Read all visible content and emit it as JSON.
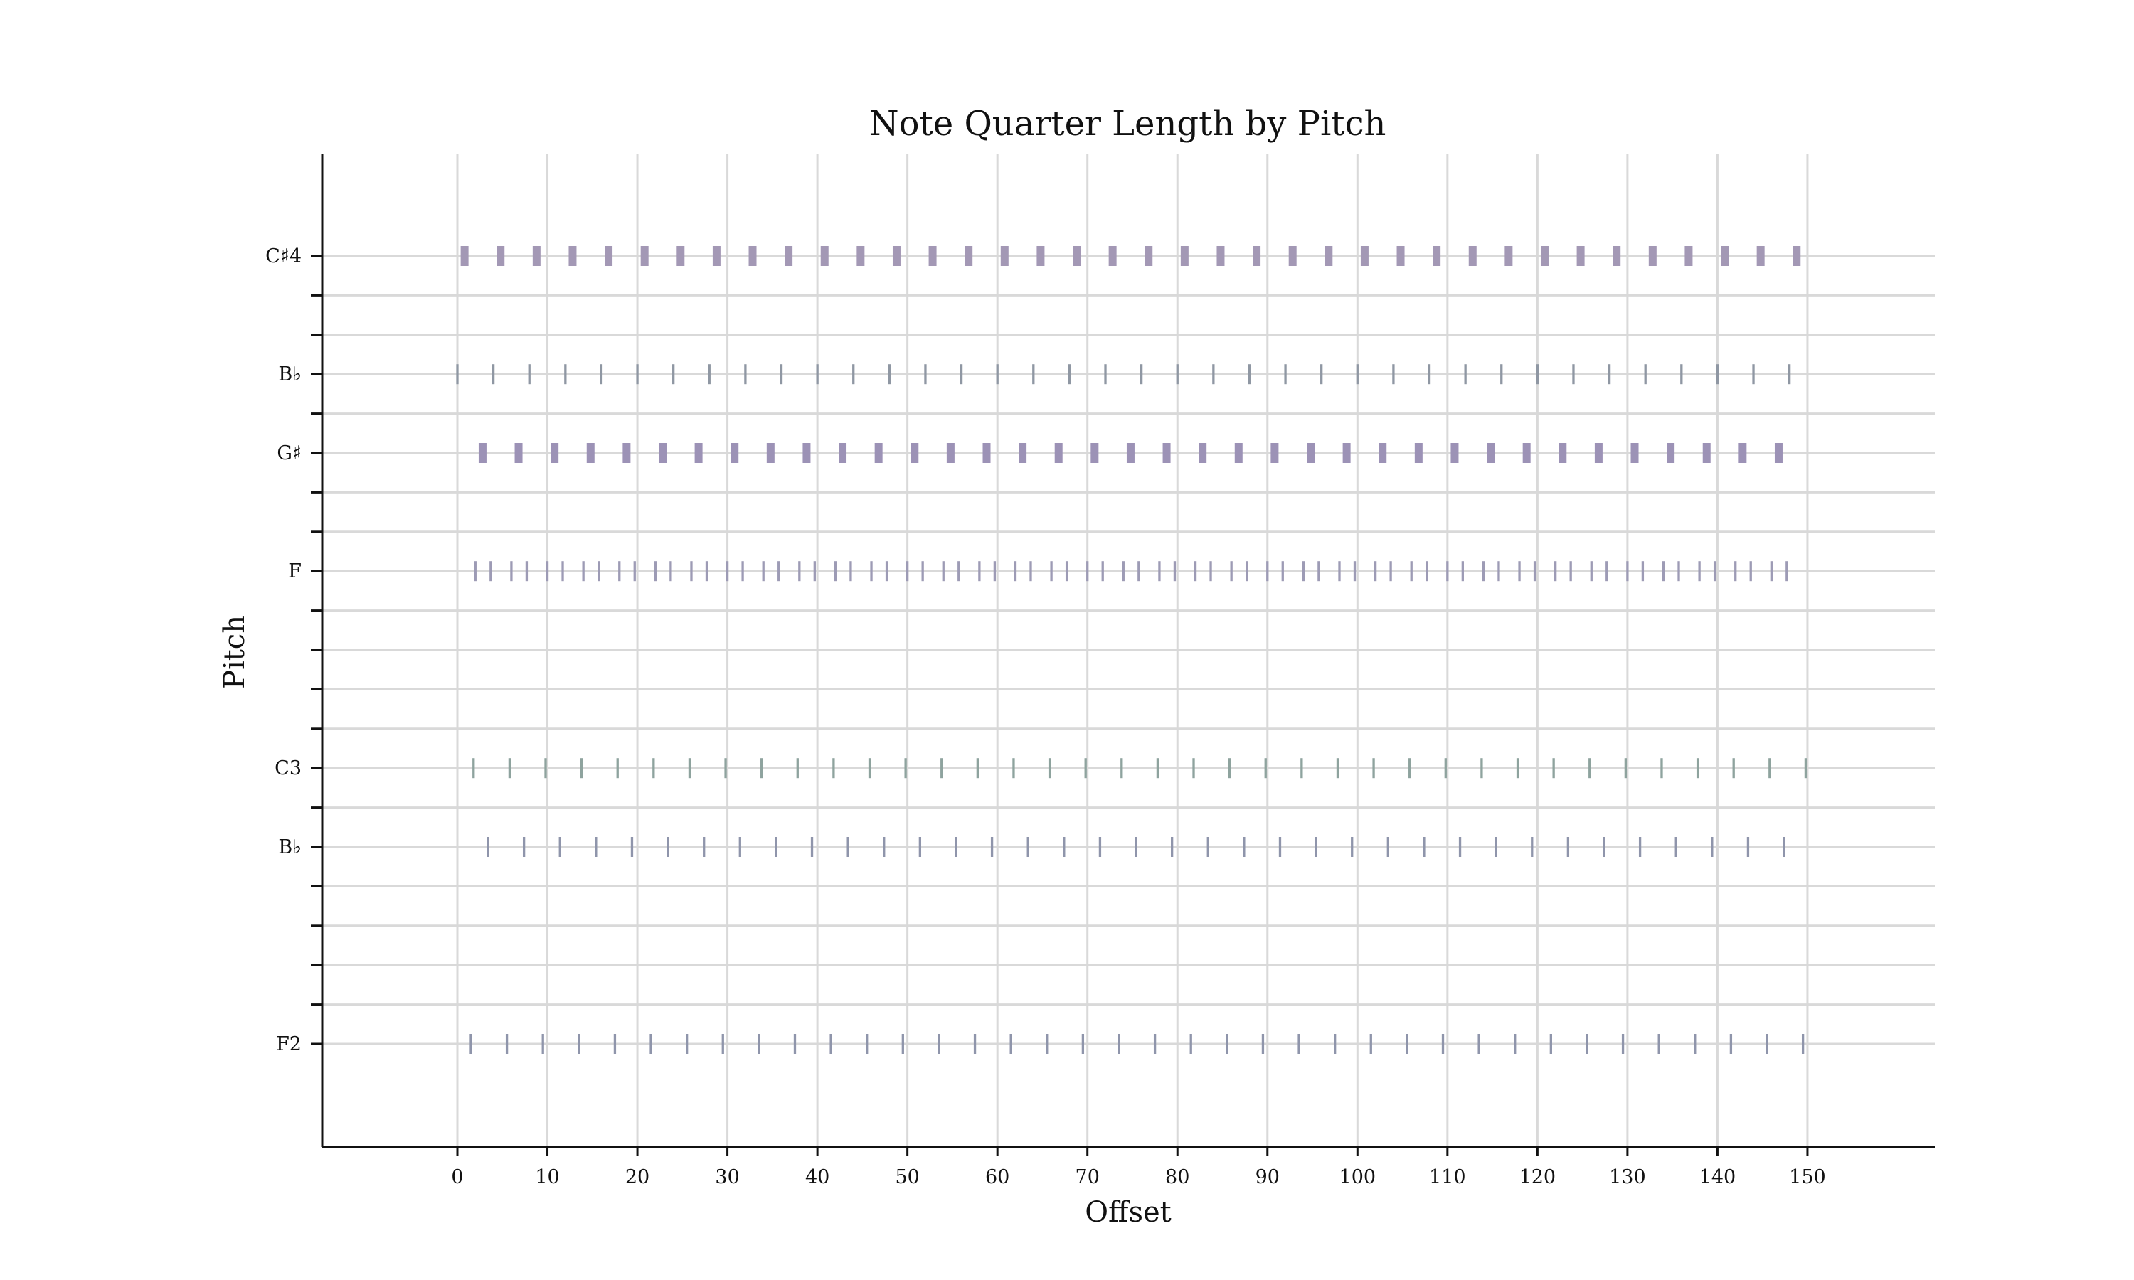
{
  "chart_data": {
    "type": "scatter",
    "title": "Note Quarter Length by Pitch",
    "xlabel": "Offset",
    "ylabel": "Pitch",
    "xlim": [
      -15,
      165
    ],
    "xticks": [
      0,
      10,
      20,
      30,
      40,
      50,
      60,
      70,
      80,
      90,
      100,
      110,
      120,
      130,
      140,
      150
    ],
    "grid": true,
    "pitch_rows": [
      {
        "midi": 61,
        "label": "C♯4"
      },
      {
        "midi": 60,
        "label": ""
      },
      {
        "midi": 59,
        "label": ""
      },
      {
        "midi": 58,
        "label": "B♭"
      },
      {
        "midi": 57,
        "label": ""
      },
      {
        "midi": 56,
        "label": "G♯"
      },
      {
        "midi": 55,
        "label": ""
      },
      {
        "midi": 54,
        "label": ""
      },
      {
        "midi": 53,
        "label": "F"
      },
      {
        "midi": 52,
        "label": ""
      },
      {
        "midi": 51,
        "label": ""
      },
      {
        "midi": 50,
        "label": ""
      },
      {
        "midi": 49,
        "label": ""
      },
      {
        "midi": 48,
        "label": "C3"
      },
      {
        "midi": 47,
        "label": ""
      },
      {
        "midi": 46,
        "label": "B♭"
      },
      {
        "midi": 45,
        "label": ""
      },
      {
        "midi": 44,
        "label": ""
      },
      {
        "midi": 43,
        "label": ""
      },
      {
        "midi": 42,
        "label": ""
      },
      {
        "midi": 41,
        "label": "F2"
      }
    ],
    "series": [
      {
        "pitch": "C♯4",
        "midi": 61,
        "color": "#a398b5",
        "mark_width": 5,
        "offsets": [
          0.8,
          4.8,
          8.8,
          12.8,
          16.8,
          20.8,
          24.8,
          28.8,
          32.8,
          36.8,
          40.8,
          44.8,
          48.8,
          52.8,
          56.8,
          60.8,
          64.8,
          68.8,
          72.8,
          76.8,
          80.8,
          84.8,
          88.8,
          92.8,
          96.8,
          100.8,
          104.8,
          108.8,
          112.8,
          116.8,
          120.8,
          124.8,
          128.8,
          132.8,
          136.8,
          140.8,
          144.8,
          148.8
        ]
      },
      {
        "pitch": "B♭",
        "midi": 58,
        "color": "#8f97a3",
        "mark_width": 1.5,
        "offsets": [
          0,
          4,
          8,
          12,
          16,
          20,
          24,
          28,
          32,
          36,
          40,
          44,
          48,
          52,
          56,
          60,
          64,
          68,
          72,
          76,
          80,
          84,
          88,
          92,
          96,
          100,
          104,
          108,
          112,
          116,
          120,
          124,
          128,
          132,
          136,
          140,
          144,
          148
        ]
      },
      {
        "pitch": "G♯",
        "midi": 56,
        "color": "#9c92b6",
        "mark_width": 5,
        "offsets": [
          2.8,
          6.8,
          10.8,
          14.8,
          18.8,
          22.8,
          26.8,
          30.8,
          34.8,
          38.8,
          42.8,
          46.8,
          50.8,
          54.8,
          58.8,
          62.8,
          66.8,
          70.8,
          74.8,
          78.8,
          82.8,
          86.8,
          90.8,
          94.8,
          98.8,
          102.8,
          106.8,
          110.8,
          114.8,
          118.8,
          122.8,
          126.8,
          130.8,
          134.8,
          138.8,
          142.8,
          146.8
        ]
      },
      {
        "pitch": "F",
        "midi": 53,
        "color": "#9d9bb5",
        "mark_width": 1.5,
        "offsets": [
          2,
          3.7,
          6,
          7.7,
          10,
          11.7,
          14,
          15.7,
          18,
          19.7,
          22,
          23.7,
          26,
          27.7,
          30,
          31.7,
          34,
          35.7,
          38,
          39.7,
          42,
          43.7,
          46,
          47.7,
          50,
          51.7,
          54,
          55.7,
          58,
          59.7,
          62,
          63.7,
          66,
          67.7,
          70,
          71.7,
          74,
          75.7,
          78,
          79.7,
          82,
          83.7,
          86,
          87.7,
          90,
          91.7,
          94,
          95.7,
          98,
          99.7,
          102,
          103.7,
          106,
          107.7,
          110,
          111.7,
          114,
          115.7,
          118,
          119.7,
          122,
          123.7,
          126,
          127.7,
          130,
          131.7,
          134,
          135.7,
          138,
          139.7,
          142,
          143.7,
          146,
          147.7
        ]
      },
      {
        "pitch": "C3",
        "midi": 48,
        "color": "#8ea39e",
        "mark_width": 1.5,
        "offsets": [
          1.8,
          5.8,
          9.8,
          13.8,
          17.8,
          21.8,
          25.8,
          29.8,
          33.8,
          37.8,
          41.8,
          45.8,
          49.8,
          53.8,
          57.8,
          61.8,
          65.8,
          69.8,
          73.8,
          77.8,
          81.8,
          85.8,
          89.8,
          93.8,
          97.8,
          101.8,
          105.8,
          109.8,
          113.8,
          117.8,
          121.8,
          125.8,
          129.8,
          133.8,
          137.8,
          141.8,
          145.8,
          149.8
        ]
      },
      {
        "pitch": "B♭",
        "midi": 46,
        "color": "#8f95ab",
        "mark_width": 1.5,
        "offsets": [
          3.4,
          7.4,
          11.4,
          15.4,
          19.4,
          23.4,
          27.4,
          31.4,
          35.4,
          39.4,
          43.4,
          47.4,
          51.4,
          55.4,
          59.4,
          63.4,
          67.4,
          71.4,
          75.4,
          79.4,
          83.4,
          87.4,
          91.4,
          95.4,
          99.4,
          103.4,
          107.4,
          111.4,
          115.4,
          119.4,
          123.4,
          127.4,
          131.4,
          135.4,
          139.4,
          143.4,
          147.4
        ]
      },
      {
        "pitch": "F2",
        "midi": 41,
        "color": "#8f95ab",
        "mark_width": 1.5,
        "offsets": [
          1.5,
          5.5,
          9.5,
          13.5,
          17.5,
          21.5,
          25.5,
          29.5,
          33.5,
          37.5,
          41.5,
          45.5,
          49.5,
          53.5,
          57.5,
          61.5,
          65.5,
          69.5,
          73.5,
          77.5,
          81.5,
          85.5,
          89.5,
          93.5,
          97.5,
          101.5,
          105.5,
          109.5,
          113.5,
          117.5,
          121.5,
          125.5,
          129.5,
          133.5,
          137.5,
          141.5,
          145.5,
          149.5
        ]
      }
    ]
  }
}
